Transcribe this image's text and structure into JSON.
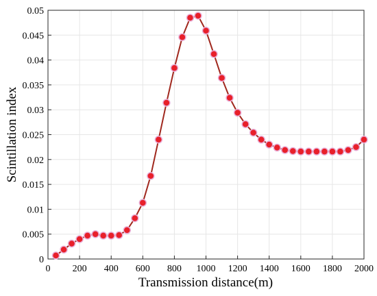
{
  "chart_data": {
    "type": "line",
    "xlabel": "Transmission distance(m)",
    "ylabel": "Scintillation index",
    "xlim": [
      0,
      2000
    ],
    "ylim": [
      0,
      0.05
    ],
    "xticks": [
      "0",
      "200",
      "400",
      "600",
      "800",
      "1000",
      "1200",
      "1400",
      "1600",
      "1800",
      "2000"
    ],
    "yticks": [
      "0",
      "0.005",
      "0.01",
      "0.015",
      "0.02",
      "0.025",
      "0.03",
      "0.035",
      "0.04",
      "0.045",
      "0.05"
    ],
    "grid": true,
    "line_color": "#a0281e",
    "marker_color": "#e8202a",
    "x": [
      50,
      100,
      150,
      200,
      250,
      300,
      350,
      400,
      450,
      500,
      550,
      600,
      650,
      700,
      750,
      800,
      850,
      900,
      950,
      1000,
      1050,
      1100,
      1150,
      1200,
      1250,
      1300,
      1350,
      1400,
      1450,
      1500,
      1550,
      1600,
      1650,
      1700,
      1750,
      1800,
      1850,
      1900,
      1950,
      2000
    ],
    "y": [
      0.0007,
      0.0019,
      0.0031,
      0.004,
      0.0047,
      0.005,
      0.0047,
      0.0047,
      0.0048,
      0.0058,
      0.0082,
      0.0113,
      0.0167,
      0.024,
      0.0314,
      0.0384,
      0.0446,
      0.0485,
      0.0489,
      0.0459,
      0.0412,
      0.0364,
      0.0324,
      0.0294,
      0.0271,
      0.0254,
      0.024,
      0.023,
      0.0224,
      0.0219,
      0.0217,
      0.0216,
      0.0216,
      0.0216,
      0.0216,
      0.0216,
      0.0216,
      0.0219,
      0.0225,
      0.024
    ]
  }
}
